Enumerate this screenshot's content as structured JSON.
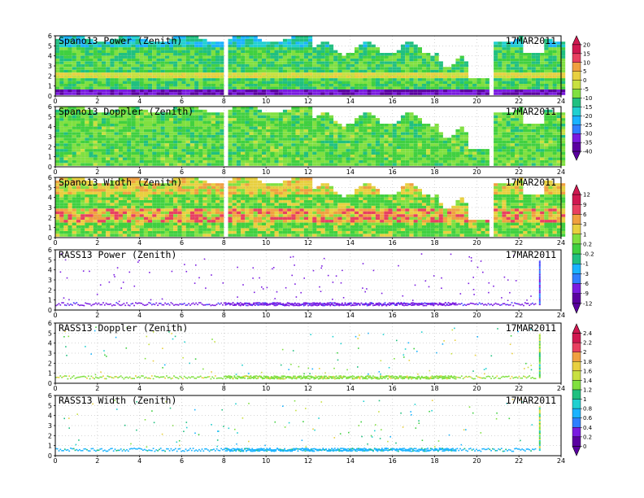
{
  "date_label": "17MAR2011",
  "colors": {
    "rainbow": [
      "#5a00a0",
      "#7a1be0",
      "#4444ff",
      "#2f7fff",
      "#1ab3ff",
      "#20d0d0",
      "#20c080",
      "#40d040",
      "#80e040",
      "#c8e040",
      "#e8d040",
      "#f0a040",
      "#f07040",
      "#e84060",
      "#d01850"
    ]
  },
  "chart_data": [
    {
      "type": "heatmap",
      "title": "Spano13 Power (Zenith)",
      "xlim": [
        0,
        24
      ],
      "ylim": [
        0,
        6
      ],
      "grid": true
    },
    {
      "type": "heatmap",
      "title": "Spano13 Doppler (Zenith)",
      "xlim": [
        0,
        24
      ],
      "ylim": [
        0,
        6
      ],
      "grid": true
    },
    {
      "type": "heatmap",
      "title": "Spano13 Width (Zenith)",
      "xlim": [
        0,
        24
      ],
      "ylim": [
        0,
        6
      ],
      "grid": true
    },
    {
      "type": "scatter",
      "title": "RASS13 Power (Zenith)",
      "xlim": [
        0,
        24
      ],
      "ylim": [
        0,
        6
      ],
      "grid": true
    },
    {
      "type": "scatter",
      "title": "RASS13 Doppler (Zenith)",
      "xlim": [
        0,
        24
      ],
      "ylim": [
        0,
        6
      ],
      "grid": true
    },
    {
      "type": "scatter",
      "title": "RASS13 Width (Zenith)",
      "xlim": [
        0,
        24
      ],
      "ylim": [
        0,
        6
      ],
      "grid": true
    }
  ],
  "xticks": [
    "0",
    "2",
    "4",
    "6",
    "8",
    "10",
    "12",
    "14",
    "16",
    "18",
    "20",
    "22",
    "24"
  ],
  "yticks": [
    "0",
    "1",
    "2",
    "3",
    "4",
    "5",
    "6"
  ],
  "colorbars": [
    {
      "labels": [
        "20",
        "15",
        "10",
        "5",
        "0",
        "-5",
        "-10",
        "-15",
        "-20",
        "-25",
        "-30",
        "-35",
        "-40"
      ]
    },
    {
      "labels": [
        "12",
        "9",
        "6",
        "3",
        "1",
        "0.2",
        "-0.2",
        "-1",
        "-3",
        "-6",
        "-9",
        "-12"
      ]
    },
    {
      "labels": [
        "2.4",
        "2.2",
        "2",
        "1.8",
        "1.6",
        "1.4",
        "1.2",
        "1",
        "0.8",
        "0.6",
        "0.4",
        "0.2",
        "0"
      ]
    }
  ]
}
